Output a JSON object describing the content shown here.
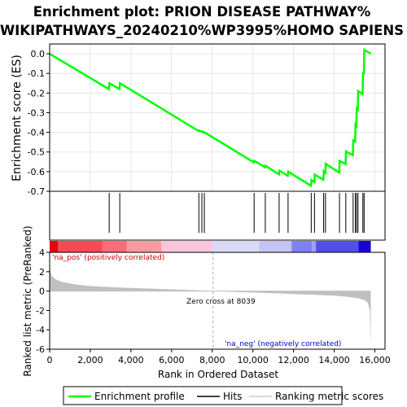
{
  "chart_data": {
    "type": "line",
    "title_lines": [
      "Enrichment plot: PRION DISEASE PATHWAY%",
      "WIKIPATHWAYS_20240210%WP3995%HOMO SAPIENS"
    ],
    "top_panel": {
      "ylabel": "Enrichment score (ES)",
      "ylim": [
        -0.7,
        0.05
      ],
      "yticks": [
        0.0,
        -0.1,
        -0.2,
        -0.3,
        -0.4,
        -0.5,
        -0.6,
        -0.7
      ],
      "ytick_labels": [
        "0.0",
        "-0.1",
        "-0.2",
        "-0.3",
        "-0.4",
        "-0.5",
        "-0.6",
        "-0.7"
      ],
      "series": [
        {
          "name": "Enrichment profile",
          "color": "#00ff00",
          "x": [
            0,
            2920,
            2940,
            3440,
            3460,
            7330,
            7350,
            7480,
            7500,
            7600,
            7620,
            10050,
            10070,
            10600,
            10620,
            11280,
            11300,
            11720,
            11740,
            12860,
            12880,
            13020,
            13040,
            13470,
            13490,
            13560,
            13580,
            14250,
            14270,
            14560,
            14580,
            14920,
            14940,
            15030,
            15050,
            15090,
            15110,
            15160,
            15180,
            15400,
            15420,
            15460,
            15480,
            15800
          ],
          "y": [
            0.0,
            -0.18,
            -0.15,
            -0.18,
            -0.15,
            -0.393,
            -0.39,
            -0.397,
            -0.395,
            -0.402,
            -0.4,
            -0.553,
            -0.545,
            -0.578,
            -0.57,
            -0.614,
            -0.595,
            -0.621,
            -0.6,
            -0.672,
            -0.643,
            -0.653,
            -0.615,
            -0.641,
            -0.598,
            -0.605,
            -0.56,
            -0.605,
            -0.545,
            -0.562,
            -0.497,
            -0.517,
            -0.44,
            -0.445,
            -0.36,
            -0.365,
            -0.28,
            -0.285,
            -0.19,
            -0.205,
            -0.1,
            -0.1,
            0.02,
            0.0
          ]
        }
      ]
    },
    "hits": [
      2930,
      3450,
      7340,
      7490,
      7610,
      10060,
      10610,
      11290,
      11730,
      12870,
      13030,
      13480,
      13570,
      14260,
      14570,
      14930,
      15040,
      15100,
      15170,
      15410,
      15470
    ],
    "bottom_panel": {
      "ylabel": "Ranked list metric (PreRanked)",
      "xlabel": "Rank in Ordered Dataset",
      "ylim": [
        -6,
        4
      ],
      "yticks": [
        4,
        2,
        0,
        -2,
        -4,
        -6
      ],
      "ytick_labels": [
        "4",
        "2",
        "0",
        "-2",
        "-4",
        "-6"
      ],
      "xlim": [
        0,
        16500
      ],
      "xticks": [
        0,
        2000,
        4000,
        6000,
        8000,
        10000,
        12000,
        14000,
        16000
      ],
      "xtick_labels": [
        "0",
        "2,000",
        "4,000",
        "6,000",
        "8,000",
        "10,000",
        "12,000",
        "14,000",
        "16,000"
      ],
      "metric_curve": {
        "x": [
          0,
          100,
          300,
          600,
          1000,
          1500,
          2000,
          3000,
          4000,
          5000,
          6000,
          7000,
          8039,
          9000,
          10000,
          11000,
          12000,
          13000,
          14000,
          14500,
          15000,
          15300,
          15500,
          15650,
          15750,
          15800
        ],
        "y": [
          2.5,
          1.6,
          1.2,
          0.95,
          0.78,
          0.62,
          0.52,
          0.4,
          0.32,
          0.25,
          0.18,
          0.1,
          0.0,
          -0.08,
          -0.15,
          -0.22,
          -0.3,
          -0.38,
          -0.48,
          -0.56,
          -0.68,
          -0.8,
          -0.95,
          -1.2,
          -2.0,
          -5.5
        ]
      },
      "pos_label": "'na_pos' (positively correlated)",
      "neg_label": "'na_neg' (negatively correlated)",
      "zero_cross_label": "Zero cross at 8039",
      "zero_cross": 8039
    },
    "n_genes": 15800,
    "legend": [
      "Enrichment profile",
      "Hits",
      "Ranking metric scores"
    ],
    "colors": {
      "profile": "#00ff00",
      "metric_fill": "#c0c0c0",
      "pos_text": "#cc0000",
      "neg_text": "#0000cc"
    }
  }
}
